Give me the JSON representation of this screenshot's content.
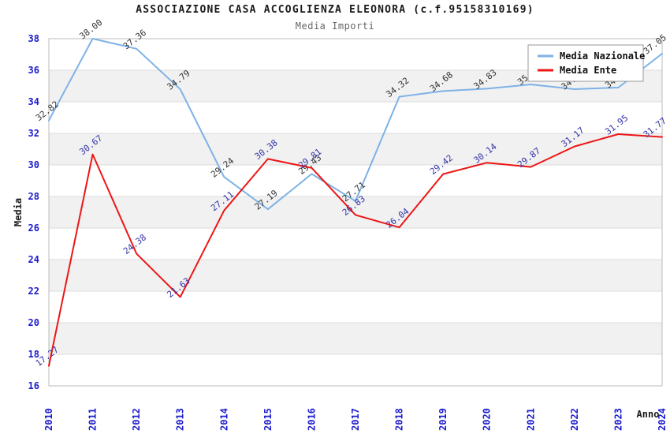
{
  "header": {
    "title": "ASSOCIAZIONE CASA ACCOGLIENZA ELEONORA (c.f.95158310169)",
    "subtitle": "Media Importi"
  },
  "chart_data": {
    "type": "line",
    "title": "ASSOCIAZIONE CASA ACCOGLIENZA ELEONORA (c.f.95158310169)",
    "subtitle": "Media Importi",
    "xlabel": "Anno",
    "ylabel": "Media",
    "x": [
      2010,
      2011,
      2012,
      2013,
      2014,
      2015,
      2016,
      2017,
      2018,
      2019,
      2020,
      2021,
      2022,
      2023,
      2024
    ],
    "series": [
      {
        "name": "Media Nazionale",
        "color": "#7EB2E6",
        "label_color": "#333333",
        "values": [
          32.82,
          38.0,
          37.36,
          34.79,
          29.24,
          27.19,
          29.43,
          27.71,
          34.32,
          34.68,
          34.83,
          35.1,
          34.8,
          34.9,
          37.05
        ],
        "note": "2021-2023 point labels are hidden behind the legend box; those values estimated from line position"
      },
      {
        "name": "Media Ente",
        "color": "#ED1515",
        "label_color": "#3333A6",
        "values": [
          17.27,
          30.67,
          24.38,
          21.63,
          27.11,
          30.38,
          29.81,
          26.83,
          26.04,
          29.42,
          30.14,
          29.87,
          31.17,
          31.95,
          31.77
        ]
      }
    ],
    "ylim": [
      16,
      38
    ],
    "ytick_step": 2,
    "yticks": [
      38,
      36,
      34,
      32,
      30,
      28,
      26,
      24,
      22,
      20,
      18,
      16
    ],
    "grid": "horizontal gridlines with alternating gray bands",
    "legend_position": "top-right",
    "colors": {
      "tick_label": "#1A1ACE",
      "band_fill": "#F1F1F1",
      "gridline": "#DCDCDC",
      "plot_border": "#BBBBBB",
      "axis_title": "#1a1a1a",
      "legend_border": "#999999"
    }
  }
}
